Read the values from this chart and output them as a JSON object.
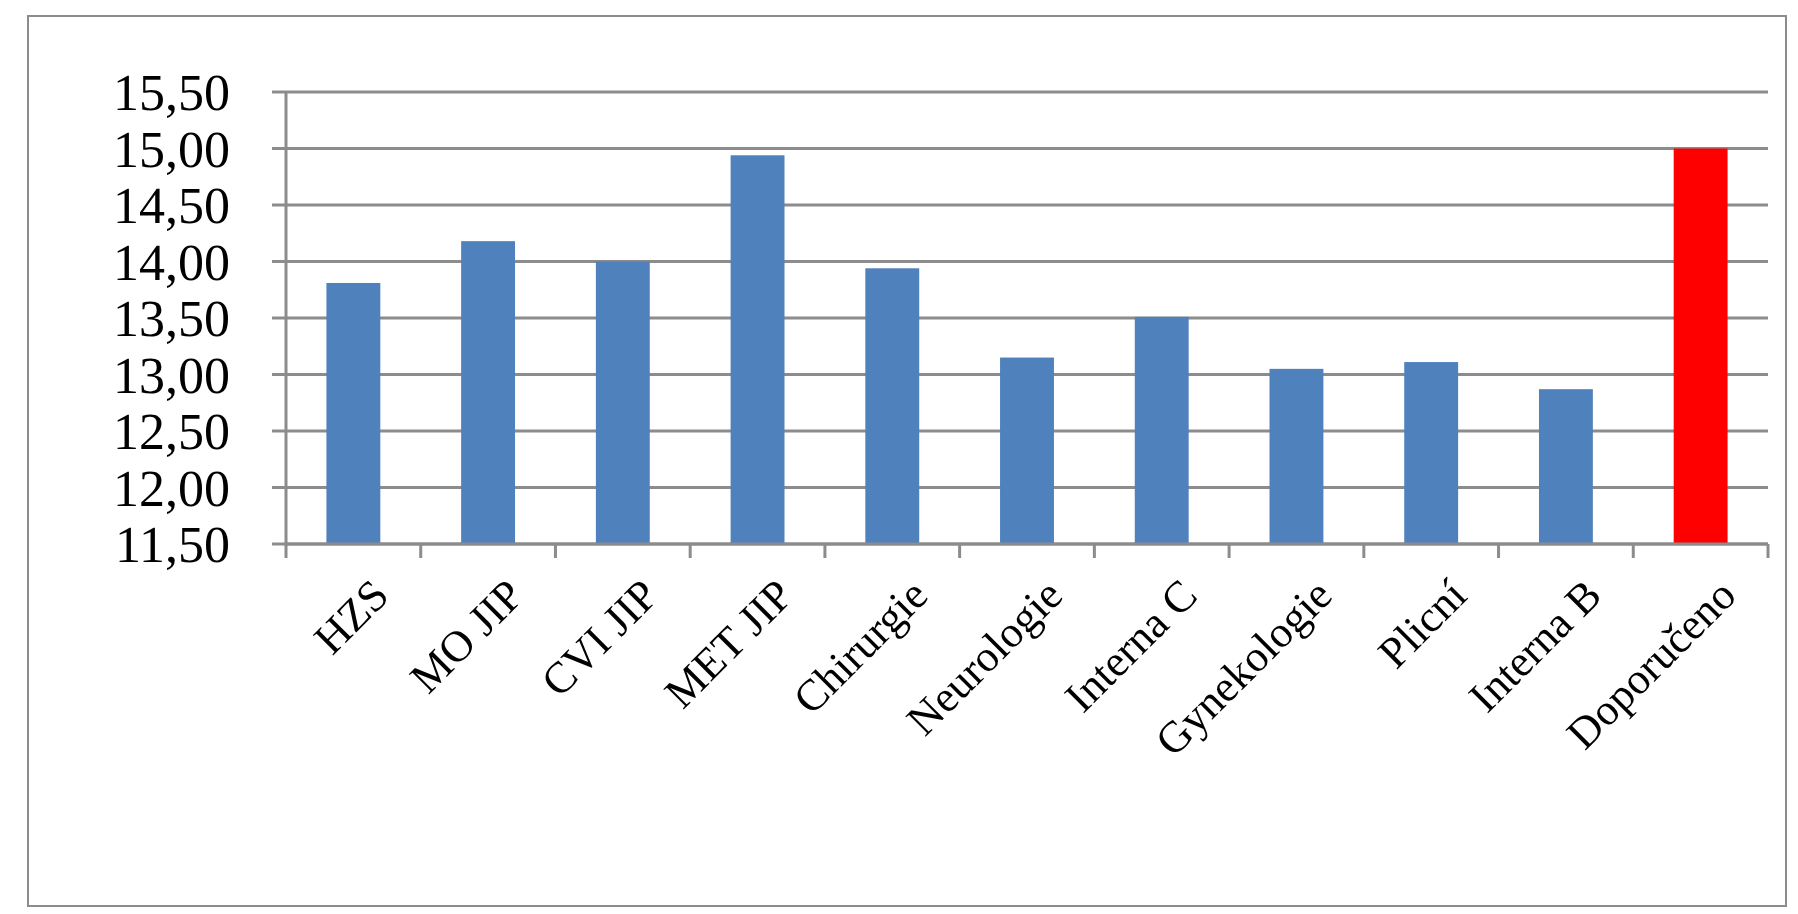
{
  "chart_data": {
    "type": "bar",
    "categories": [
      "HZS",
      "MO JIP",
      "CVI JIP",
      "MET JIP",
      "Chirurgie",
      "Neurologie",
      "Interna C",
      "Gynekologie",
      "Plicní",
      "Interna B",
      "Doporučeno"
    ],
    "values": [
      13.81,
      14.18,
      14.0,
      14.94,
      13.94,
      13.15,
      13.51,
      13.05,
      13.11,
      12.87,
      15.0
    ],
    "colors": [
      "#4f81bd",
      "#4f81bd",
      "#4f81bd",
      "#4f81bd",
      "#4f81bd",
      "#4f81bd",
      "#4f81bd",
      "#4f81bd",
      "#4f81bd",
      "#4f81bd",
      "#ff0000"
    ],
    "ylim": [
      11.5,
      15.5
    ],
    "yticks": [
      {
        "value": 11.5,
        "label": "11,50"
      },
      {
        "value": 12,
        "label": "12,00"
      },
      {
        "value": 12.5,
        "label": "12,50"
      },
      {
        "value": 13,
        "label": "13,00"
      },
      {
        "value": 13.5,
        "label": "13,50"
      },
      {
        "value": 14,
        "label": "14,00"
      },
      {
        "value": 14.5,
        "label": "14,50"
      },
      {
        "value": 15,
        "label": "15,00"
      },
      {
        "value": 15.5,
        "label": "15,50"
      }
    ],
    "grid": "y"
  }
}
